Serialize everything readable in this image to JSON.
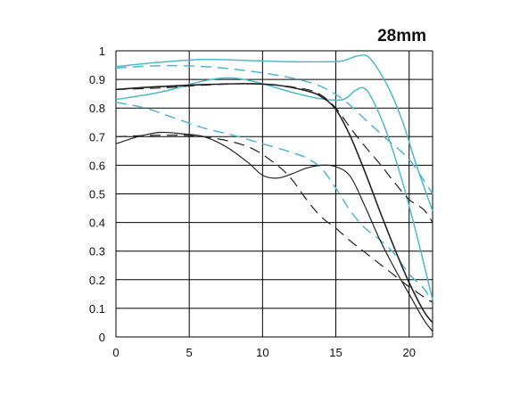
{
  "chart_data": {
    "type": "line",
    "title": "28mm",
    "xlabel": "",
    "ylabel": "",
    "xlim": [
      0,
      21.6
    ],
    "ylim": [
      0,
      1
    ],
    "grid": true,
    "x_ticks": [
      0,
      5,
      10,
      15,
      20
    ],
    "x_tick_labels": [
      "0",
      "5",
      "10",
      "15",
      "20"
    ],
    "y_ticks": [
      0,
      0.1,
      0.2,
      0.3,
      0.4,
      0.5,
      0.6,
      0.7,
      0.8,
      0.9,
      1
    ],
    "y_tick_labels": [
      "0",
      "0.1",
      "0.2",
      "0.3",
      "0.4",
      "0.5",
      "0.6",
      "0.7",
      "0.8",
      "0.9",
      "1"
    ],
    "colors": {
      "cyan": "#4fb8cc",
      "black": "#222222",
      "grid": "#000000"
    },
    "series": [
      {
        "color": "cyan",
        "dash": false,
        "width": 1.5,
        "points": [
          [
            0,
            0.945
          ],
          [
            3,
            0.96
          ],
          [
            6,
            0.97
          ],
          [
            9,
            0.966
          ],
          [
            12,
            0.962
          ],
          [
            14.5,
            0.962
          ],
          [
            15.5,
            0.965
          ],
          [
            16.5,
            0.982
          ],
          [
            17.3,
            0.975
          ],
          [
            18.5,
            0.88
          ],
          [
            19.5,
            0.76
          ],
          [
            20.5,
            0.6
          ],
          [
            21.6,
            0.44
          ]
        ]
      },
      {
        "color": "cyan",
        "dash": true,
        "width": 1.5,
        "points": [
          [
            0,
            0.94
          ],
          [
            3,
            0.948
          ],
          [
            6,
            0.945
          ],
          [
            9,
            0.93
          ],
          [
            12,
            0.905
          ],
          [
            14,
            0.875
          ],
          [
            15.5,
            0.83
          ],
          [
            17,
            0.76
          ],
          [
            18.5,
            0.69
          ],
          [
            20,
            0.62
          ],
          [
            21.6,
            0.5
          ]
        ]
      },
      {
        "color": "cyan",
        "dash": false,
        "width": 1.5,
        "points": [
          [
            0,
            0.83
          ],
          [
            3,
            0.855
          ],
          [
            6,
            0.895
          ],
          [
            8,
            0.905
          ],
          [
            10,
            0.885
          ],
          [
            12,
            0.855
          ],
          [
            14,
            0.832
          ],
          [
            15.5,
            0.83
          ],
          [
            16.3,
            0.86
          ],
          [
            16.9,
            0.87
          ],
          [
            17.5,
            0.83
          ],
          [
            18.5,
            0.71
          ],
          [
            19.5,
            0.55
          ],
          [
            20.5,
            0.36
          ],
          [
            21.6,
            0.13
          ]
        ]
      },
      {
        "color": "cyan",
        "dash": true,
        "width": 1.5,
        "points": [
          [
            0,
            0.82
          ],
          [
            2,
            0.8
          ],
          [
            4,
            0.765
          ],
          [
            6,
            0.73
          ],
          [
            8,
            0.705
          ],
          [
            10,
            0.675
          ],
          [
            12,
            0.645
          ],
          [
            13,
            0.625
          ],
          [
            14,
            0.59
          ],
          [
            15,
            0.52
          ],
          [
            16,
            0.44
          ],
          [
            17,
            0.38
          ],
          [
            18,
            0.34
          ],
          [
            19,
            0.29
          ],
          [
            20,
            0.22
          ],
          [
            21,
            0.17
          ],
          [
            21.6,
            0.12
          ]
        ]
      },
      {
        "color": "black",
        "dash": false,
        "width": 1.6,
        "points": [
          [
            0,
            0.865
          ],
          [
            3,
            0.875
          ],
          [
            6,
            0.882
          ],
          [
            9,
            0.885
          ],
          [
            11,
            0.88
          ],
          [
            13,
            0.86
          ],
          [
            14,
            0.84
          ],
          [
            15,
            0.795
          ],
          [
            16,
            0.7
          ],
          [
            17,
            0.575
          ],
          [
            18,
            0.44
          ],
          [
            19,
            0.31
          ],
          [
            20,
            0.19
          ],
          [
            21,
            0.09
          ],
          [
            21.6,
            0.05
          ]
        ]
      },
      {
        "color": "black",
        "dash": true,
        "width": 1.2,
        "points": [
          [
            0,
            0.865
          ],
          [
            3,
            0.87
          ],
          [
            6,
            0.88
          ],
          [
            9,
            0.885
          ],
          [
            11,
            0.88
          ],
          [
            13,
            0.865
          ],
          [
            14,
            0.845
          ],
          [
            15,
            0.8
          ],
          [
            16,
            0.73
          ],
          [
            17,
            0.665
          ],
          [
            18,
            0.605
          ],
          [
            19,
            0.54
          ],
          [
            20,
            0.48
          ],
          [
            21,
            0.445
          ],
          [
            21.6,
            0.4
          ]
        ]
      },
      {
        "color": "black",
        "dash": false,
        "width": 1.2,
        "points": [
          [
            0,
            0.675
          ],
          [
            1.5,
            0.7
          ],
          [
            3,
            0.715
          ],
          [
            4.5,
            0.71
          ],
          [
            6,
            0.7
          ],
          [
            7.5,
            0.665
          ],
          [
            9,
            0.61
          ],
          [
            10,
            0.565
          ],
          [
            11,
            0.555
          ],
          [
            12,
            0.57
          ],
          [
            13,
            0.59
          ],
          [
            14,
            0.6
          ],
          [
            15,
            0.595
          ],
          [
            16,
            0.56
          ],
          [
            17,
            0.455
          ],
          [
            18,
            0.34
          ],
          [
            19,
            0.24
          ],
          [
            20,
            0.15
          ],
          [
            21,
            0.06
          ],
          [
            21.6,
            0.02
          ]
        ]
      },
      {
        "color": "black",
        "dash": true,
        "width": 1.2,
        "points": [
          [
            0,
            0.7
          ],
          [
            3,
            0.705
          ],
          [
            6,
            0.7
          ],
          [
            9,
            0.665
          ],
          [
            11,
            0.6
          ],
          [
            12,
            0.55
          ],
          [
            13,
            0.48
          ],
          [
            14,
            0.42
          ],
          [
            15,
            0.38
          ],
          [
            16,
            0.335
          ],
          [
            17,
            0.295
          ],
          [
            18,
            0.255
          ],
          [
            19,
            0.215
          ],
          [
            20,
            0.175
          ],
          [
            21,
            0.14
          ],
          [
            21.6,
            0.12
          ]
        ]
      }
    ]
  }
}
